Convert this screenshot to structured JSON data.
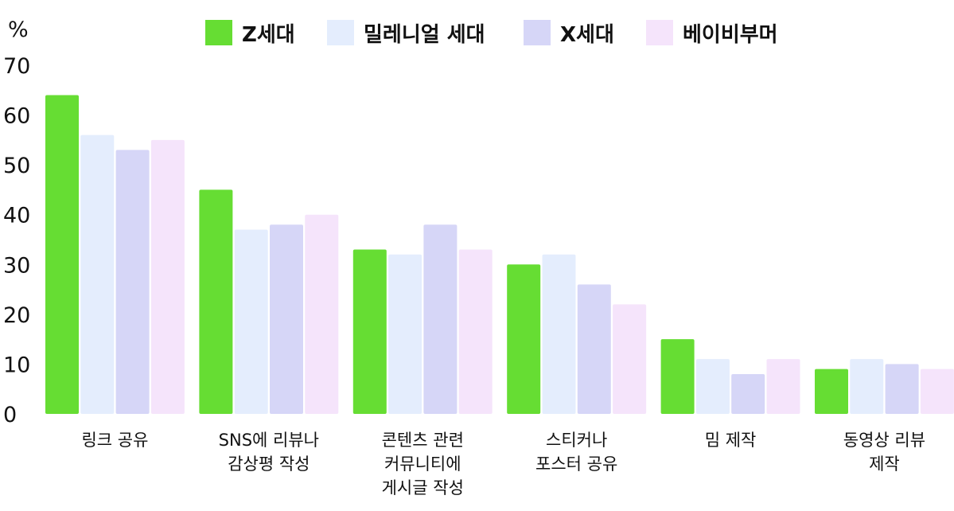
{
  "chart_data": {
    "type": "bar",
    "ylabel": "%",
    "ylim": [
      0,
      70
    ],
    "yticks": [
      "0",
      "10",
      "20",
      "30",
      "40",
      "50",
      "60",
      "70"
    ],
    "grid": false,
    "legend_position": "top-center",
    "categories": [
      "링크 공유",
      "SNS에 리뷰나\n감상평 작성",
      "콘텐츠 관련\n커뮤니티에\n게시글 작성",
      "스티커나\n포스터 공유",
      "밈 제작",
      "동영상 리뷰\n제작"
    ],
    "series": [
      {
        "name": "Z세대",
        "color": "#66dd33",
        "values": [
          64,
          45,
          33,
          30,
          15,
          9
        ]
      },
      {
        "name": "밀레니얼 세대",
        "color": "#e4edfd",
        "values": [
          56,
          37,
          32,
          32,
          11,
          11
        ]
      },
      {
        "name": "X세대",
        "color": "#d6d6f7",
        "values": [
          53,
          38,
          38,
          26,
          8,
          10
        ]
      },
      {
        "name": "베이비부머",
        "color": "#f5e4fb",
        "values": [
          55,
          40,
          33,
          22,
          11,
          9
        ]
      }
    ]
  }
}
